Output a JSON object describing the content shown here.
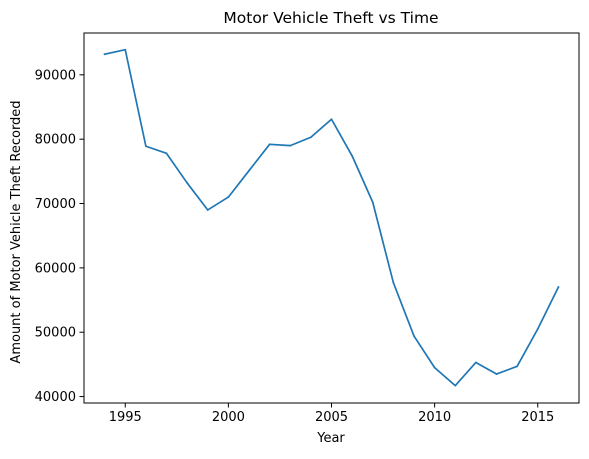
{
  "chart_data": {
    "type": "line",
    "title": "Motor Vehicle Theft vs Time",
    "xlabel": "Year",
    "ylabel": "Amount of Motor Vehicle Theft Recorded",
    "xlim": [
      1993,
      2017
    ],
    "ylim": [
      39000,
      96500
    ],
    "xticks": [
      1995,
      2000,
      2005,
      2010,
      2015
    ],
    "yticks": [
      40000,
      50000,
      60000,
      70000,
      80000,
      90000
    ],
    "grid": false,
    "series": [
      {
        "color": "#1f77b4",
        "x": [
          1994,
          1995,
          1996,
          1997,
          1998,
          1999,
          2000,
          2001,
          2002,
          2003,
          2004,
          2005,
          2006,
          2007,
          2008,
          2009,
          2010,
          2011,
          2012,
          2013,
          2014,
          2015,
          2016
        ],
        "y": [
          93200,
          93900,
          78900,
          77800,
          73200,
          69000,
          71000,
          75100,
          79200,
          79000,
          80300,
          83100,
          77400,
          70200,
          57700,
          49400,
          44500,
          41700,
          45300,
          43500,
          44700,
          50500,
          57000
        ]
      }
    ]
  }
}
